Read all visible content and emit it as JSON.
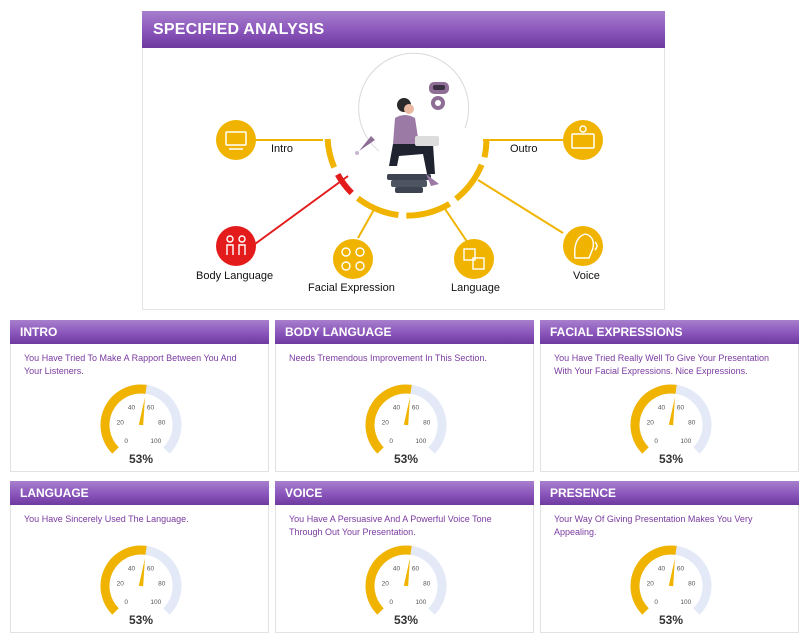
{
  "page": {
    "title": "SPECIFIED ANALYSIS"
  },
  "diagram": {
    "segments": [
      {
        "label": "Intro",
        "color": "#f0b400"
      },
      {
        "label": "Body Language",
        "color": "#e31b1b"
      },
      {
        "label": "Facial Expression",
        "color": "#f0b400"
      },
      {
        "label": "Language",
        "color": "#f0b400"
      },
      {
        "label": "Voice",
        "color": "#f0b400"
      },
      {
        "label": "Outro",
        "color": "#f0b400"
      }
    ]
  },
  "cards": [
    {
      "title": "INTRO",
      "description": "You Have Tried To Make A Rapport Between You And Your Listeners.",
      "score": 53,
      "score_label": "53%"
    },
    {
      "title": "BODY LANGUAGE",
      "description": "Needs Tremendous Improvement In This Section.",
      "score": 53,
      "score_label": "53%"
    },
    {
      "title": "FACIAL EXPRESSIONS",
      "description": "You Have Tried Really Well To Give Your Presentation With Your Facial Expressions. Nice Expressions.",
      "score": 53,
      "score_label": "53%"
    },
    {
      "title": "LANGUAGE",
      "description": "You Have Sincerely Used The Language.",
      "score": 53,
      "score_label": "53%"
    },
    {
      "title": "VOICE",
      "description": "You Have A Persuasive And A Powerful Voice Tone Through Out Your Presentation.",
      "score": 53,
      "score_label": "53%"
    },
    {
      "title": "PRESENCE",
      "description": "Your Way Of Giving Presentation Makes You Very Appealing.",
      "score": 53,
      "score_label": "53%"
    }
  ],
  "gauge": {
    "ticks": [
      "0",
      "20",
      "40",
      "60",
      "80",
      "100"
    ],
    "fill_color": "#f0b400",
    "track_color": "#e3e9f7"
  }
}
